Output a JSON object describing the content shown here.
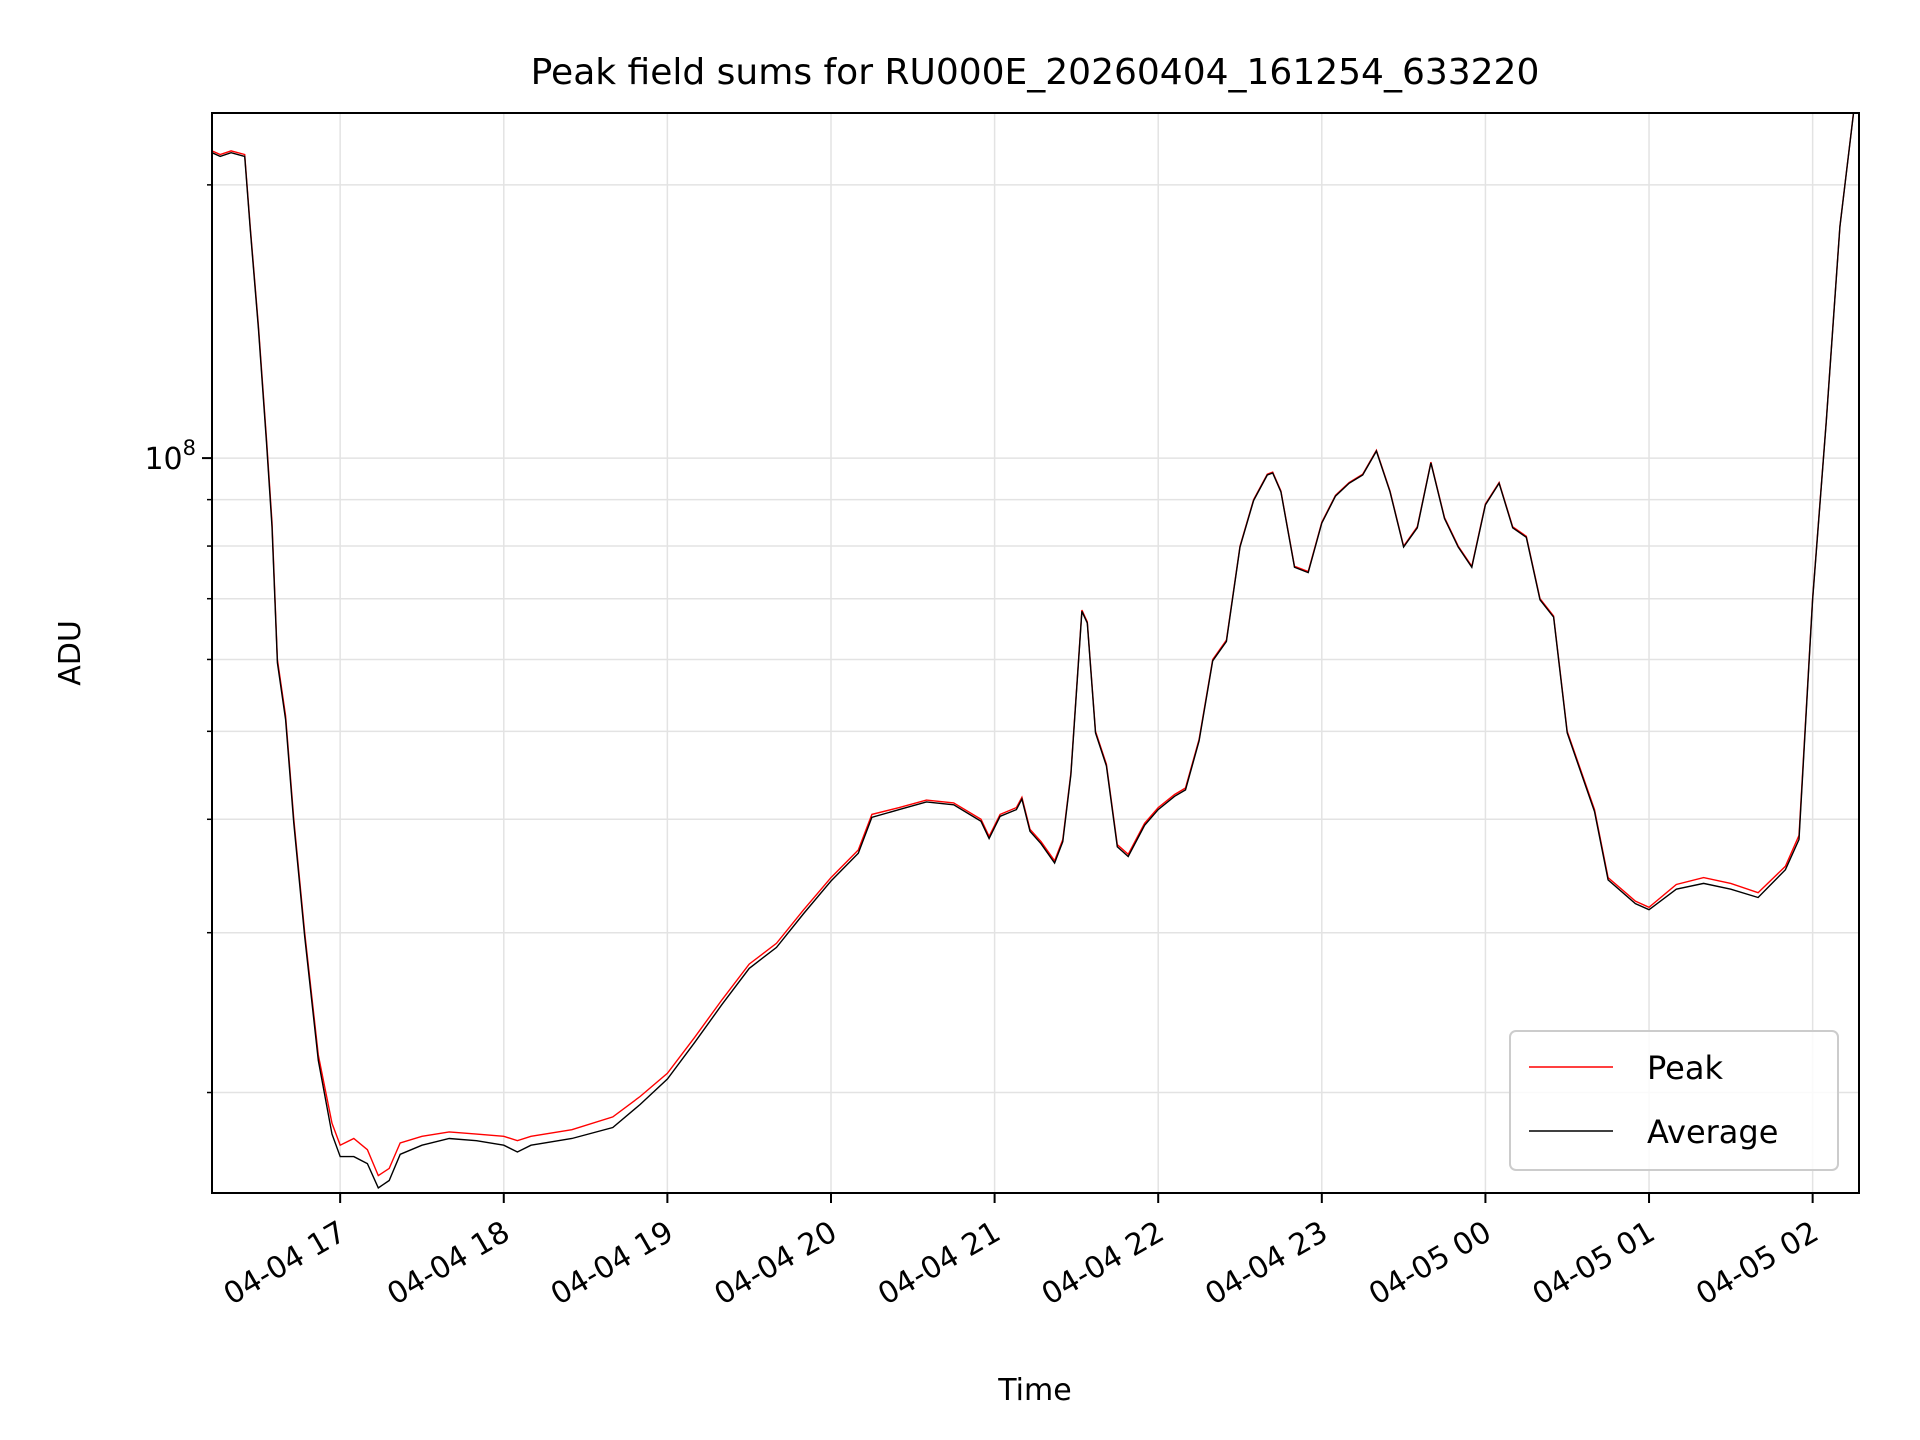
{
  "chart_data": {
    "type": "line",
    "title": "Peak field sums for RU000E_20260404_161254_633220",
    "xlabel": "Time",
    "ylabel": "ADU",
    "y_scale": "log",
    "ylim": [
      15500000,
      240000000
    ],
    "xlim": [
      "2026-04-04 16:13",
      "2026-04-05 02:17"
    ],
    "grid": true,
    "legend_position": "lower right",
    "x_ticks": [
      {
        "t": "2026-04-04 17:00",
        "label": "04-04 17"
      },
      {
        "t": "2026-04-04 18:00",
        "label": "04-04 18"
      },
      {
        "t": "2026-04-04 19:00",
        "label": "04-04 19"
      },
      {
        "t": "2026-04-04 20:00",
        "label": "04-04 20"
      },
      {
        "t": "2026-04-04 21:00",
        "label": "04-04 21"
      },
      {
        "t": "2026-04-04 22:00",
        "label": "04-04 22"
      },
      {
        "t": "2026-04-04 23:00",
        "label": "04-04 23"
      },
      {
        "t": "2026-04-05 00:00",
        "label": "04-05 00"
      },
      {
        "t": "2026-04-05 01:00",
        "label": "04-05 01"
      },
      {
        "t": "2026-04-05 02:00",
        "label": "04-05 02"
      }
    ],
    "y_major_ticks": [
      {
        "value": 100000000,
        "base": "10",
        "exp": "8"
      }
    ],
    "y_minor_ticks": [
      20000000,
      30000000,
      40000000,
      50000000,
      60000000,
      70000000,
      80000000,
      90000000,
      200000000
    ],
    "series": [
      {
        "name": "Peak",
        "color": "#ff0000",
        "points": [
          [
            "2026-04-04 16:13",
            218000000
          ],
          [
            "2026-04-04 16:16",
            216000000
          ],
          [
            "2026-04-04 16:20",
            218000000
          ],
          [
            "2026-04-04 16:25",
            216000000
          ],
          [
            "2026-04-04 16:27",
            180000000
          ],
          [
            "2026-04-04 16:30",
            140000000
          ],
          [
            "2026-04-04 16:33",
            105000000
          ],
          [
            "2026-04-04 16:35",
            85000000
          ],
          [
            "2026-04-04 16:37",
            60000000
          ],
          [
            "2026-04-04 16:40",
            52000000
          ],
          [
            "2026-04-04 16:43",
            40000000
          ],
          [
            "2026-04-04 16:47",
            30000000
          ],
          [
            "2026-04-04 16:52",
            22000000
          ],
          [
            "2026-04-04 16:57",
            18500000
          ],
          [
            "2026-04-04 17:00",
            17500000
          ],
          [
            "2026-04-04 17:05",
            17800000
          ],
          [
            "2026-04-04 17:10",
            17300000
          ],
          [
            "2026-04-04 17:14",
            16200000
          ],
          [
            "2026-04-04 17:18",
            16500000
          ],
          [
            "2026-04-04 17:22",
            17600000
          ],
          [
            "2026-04-04 17:30",
            17900000
          ],
          [
            "2026-04-04 17:40",
            18100000
          ],
          [
            "2026-04-04 17:50",
            18000000
          ],
          [
            "2026-04-04 18:00",
            17900000
          ],
          [
            "2026-04-04 18:05",
            17700000
          ],
          [
            "2026-04-04 18:10",
            17900000
          ],
          [
            "2026-04-04 18:25",
            18200000
          ],
          [
            "2026-04-04 18:40",
            18800000
          ],
          [
            "2026-04-04 18:50",
            19800000
          ],
          [
            "2026-04-04 19:00",
            21000000
          ],
          [
            "2026-04-04 19:10",
            23000000
          ],
          [
            "2026-04-04 19:20",
            25300000
          ],
          [
            "2026-04-04 19:30",
            27700000
          ],
          [
            "2026-04-04 19:40",
            29200000
          ],
          [
            "2026-04-04 19:50",
            31800000
          ],
          [
            "2026-04-04 20:00",
            34500000
          ],
          [
            "2026-04-04 20:10",
            37000000
          ],
          [
            "2026-04-04 20:15",
            40500000
          ],
          [
            "2026-04-04 20:25",
            41200000
          ],
          [
            "2026-04-04 20:35",
            42000000
          ],
          [
            "2026-04-04 20:45",
            41700000
          ],
          [
            "2026-04-04 20:55",
            40000000
          ],
          [
            "2026-04-04 20:58",
            38300000
          ],
          [
            "2026-04-04 21:02",
            40500000
          ],
          [
            "2026-04-04 21:08",
            41200000
          ],
          [
            "2026-04-04 21:10",
            42300000
          ],
          [
            "2026-04-04 21:13",
            39000000
          ],
          [
            "2026-04-04 21:17",
            37800000
          ],
          [
            "2026-04-04 21:22",
            36000000
          ],
          [
            "2026-04-04 21:25",
            38000000
          ],
          [
            "2026-04-04 21:28",
            45000000
          ],
          [
            "2026-04-04 21:32",
            68000000
          ],
          [
            "2026-04-04 21:34",
            66000000
          ],
          [
            "2026-04-04 21:37",
            50000000
          ],
          [
            "2026-04-04 21:41",
            46000000
          ],
          [
            "2026-04-04 21:45",
            37500000
          ],
          [
            "2026-04-04 21:49",
            36600000
          ],
          [
            "2026-04-04 21:55",
            39600000
          ],
          [
            "2026-04-04 22:00",
            41200000
          ],
          [
            "2026-04-04 22:06",
            42600000
          ],
          [
            "2026-04-04 22:10",
            43300000
          ],
          [
            "2026-04-04 22:15",
            49000000
          ],
          [
            "2026-04-04 22:20",
            60000000
          ],
          [
            "2026-04-04 22:25",
            63000000
          ],
          [
            "2026-04-04 22:30",
            80000000
          ],
          [
            "2026-04-04 22:35",
            90000000
          ],
          [
            "2026-04-04 22:40",
            96000000
          ],
          [
            "2026-04-04 22:42",
            96500000
          ],
          [
            "2026-04-04 22:45",
            92000000
          ],
          [
            "2026-04-04 22:50",
            76000000
          ],
          [
            "2026-04-04 22:55",
            75000000
          ],
          [
            "2026-04-04 23:00",
            85000000
          ],
          [
            "2026-04-04 23:05",
            91000000
          ],
          [
            "2026-04-04 23:10",
            94000000
          ],
          [
            "2026-04-04 23:15",
            96000000
          ],
          [
            "2026-04-04 23:20",
            102000000
          ],
          [
            "2026-04-04 23:25",
            92000000
          ],
          [
            "2026-04-04 23:30",
            80000000
          ],
          [
            "2026-04-04 23:35",
            84000000
          ],
          [
            "2026-04-04 23:40",
            99000000
          ],
          [
            "2026-04-04 23:45",
            86000000
          ],
          [
            "2026-04-04 23:50",
            80000000
          ],
          [
            "2026-04-04 23:55",
            76000000
          ],
          [
            "2026-04-05 00:00",
            89000000
          ],
          [
            "2026-04-05 00:05",
            94000000
          ],
          [
            "2026-04-05 00:10",
            84000000
          ],
          [
            "2026-04-05 00:15",
            82000000
          ],
          [
            "2026-04-05 00:20",
            70000000
          ],
          [
            "2026-04-05 00:25",
            67000000
          ],
          [
            "2026-04-05 00:30",
            50000000
          ],
          [
            "2026-04-05 00:40",
            41000000
          ],
          [
            "2026-04-05 00:45",
            34500000
          ],
          [
            "2026-04-05 00:55",
            32500000
          ],
          [
            "2026-04-05 01:00",
            32000000
          ],
          [
            "2026-04-05 01:10",
            33900000
          ],
          [
            "2026-04-05 01:20",
            34500000
          ],
          [
            "2026-04-05 01:30",
            34000000
          ],
          [
            "2026-04-05 01:40",
            33200000
          ],
          [
            "2026-04-05 01:50",
            35500000
          ],
          [
            "2026-04-05 01:55",
            38400000
          ],
          [
            "2026-04-05 02:00",
            70000000
          ],
          [
            "2026-04-05 02:05",
            110000000
          ],
          [
            "2026-04-05 02:10",
            180000000
          ],
          [
            "2026-04-05 02:15",
            240000000
          ]
        ]
      },
      {
        "name": "Average",
        "color": "#000000",
        "points": [
          [
            "2026-04-04 16:13",
            217000000
          ],
          [
            "2026-04-04 16:16",
            215000000
          ],
          [
            "2026-04-04 16:20",
            217000000
          ],
          [
            "2026-04-04 16:25",
            215000000
          ],
          [
            "2026-04-04 16:27",
            179000000
          ],
          [
            "2026-04-04 16:30",
            139000000
          ],
          [
            "2026-04-04 16:33",
            104000000
          ],
          [
            "2026-04-04 16:35",
            84000000
          ],
          [
            "2026-04-04 16:37",
            59500000
          ],
          [
            "2026-04-04 16:40",
            51500000
          ],
          [
            "2026-04-04 16:43",
            39600000
          ],
          [
            "2026-04-04 16:47",
            29700000
          ],
          [
            "2026-04-04 16:52",
            21700000
          ],
          [
            "2026-04-04 16:57",
            18000000
          ],
          [
            "2026-04-04 17:00",
            17000000
          ],
          [
            "2026-04-04 17:05",
            17000000
          ],
          [
            "2026-04-04 17:10",
            16700000
          ],
          [
            "2026-04-04 17:14",
            15700000
          ],
          [
            "2026-04-04 17:18",
            16000000
          ],
          [
            "2026-04-04 17:22",
            17100000
          ],
          [
            "2026-04-04 17:30",
            17500000
          ],
          [
            "2026-04-04 17:40",
            17800000
          ],
          [
            "2026-04-04 17:50",
            17700000
          ],
          [
            "2026-04-04 18:00",
            17500000
          ],
          [
            "2026-04-04 18:05",
            17200000
          ],
          [
            "2026-04-04 18:10",
            17500000
          ],
          [
            "2026-04-04 18:25",
            17800000
          ],
          [
            "2026-04-04 18:40",
            18300000
          ],
          [
            "2026-04-04 18:50",
            19400000
          ],
          [
            "2026-04-04 19:00",
            20700000
          ],
          [
            "2026-04-04 19:10",
            22700000
          ],
          [
            "2026-04-04 19:20",
            25000000
          ],
          [
            "2026-04-04 19:30",
            27400000
          ],
          [
            "2026-04-04 19:40",
            28900000
          ],
          [
            "2026-04-04 19:50",
            31500000
          ],
          [
            "2026-04-04 20:00",
            34200000
          ],
          [
            "2026-04-04 20:10",
            36700000
          ],
          [
            "2026-04-04 20:15",
            40200000
          ],
          [
            "2026-04-04 20:25",
            41000000
          ],
          [
            "2026-04-04 20:35",
            41800000
          ],
          [
            "2026-04-04 20:45",
            41500000
          ],
          [
            "2026-04-04 20:55",
            39800000
          ],
          [
            "2026-04-04 20:58",
            38100000
          ],
          [
            "2026-04-04 21:02",
            40300000
          ],
          [
            "2026-04-04 21:08",
            41000000
          ],
          [
            "2026-04-04 21:10",
            42100000
          ],
          [
            "2026-04-04 21:13",
            38800000
          ],
          [
            "2026-04-04 21:17",
            37600000
          ],
          [
            "2026-04-04 21:22",
            35800000
          ],
          [
            "2026-04-04 21:25",
            37800000
          ],
          [
            "2026-04-04 21:28",
            44800000
          ],
          [
            "2026-04-04 21:32",
            67800000
          ],
          [
            "2026-04-04 21:34",
            65800000
          ],
          [
            "2026-04-04 21:37",
            49800000
          ],
          [
            "2026-04-04 21:41",
            45800000
          ],
          [
            "2026-04-04 21:45",
            37300000
          ],
          [
            "2026-04-04 21:49",
            36400000
          ],
          [
            "2026-04-04 21:55",
            39400000
          ],
          [
            "2026-04-04 22:00",
            41000000
          ],
          [
            "2026-04-04 22:06",
            42400000
          ],
          [
            "2026-04-04 22:10",
            43100000
          ],
          [
            "2026-04-04 22:15",
            48800000
          ],
          [
            "2026-04-04 22:20",
            59800000
          ],
          [
            "2026-04-04 22:25",
            62800000
          ],
          [
            "2026-04-04 22:30",
            79800000
          ],
          [
            "2026-04-04 22:35",
            89800000
          ],
          [
            "2026-04-04 22:40",
            95800000
          ],
          [
            "2026-04-04 22:42",
            96300000
          ],
          [
            "2026-04-04 22:45",
            91800000
          ],
          [
            "2026-04-04 22:50",
            75800000
          ],
          [
            "2026-04-04 22:55",
            74800000
          ],
          [
            "2026-04-04 23:00",
            84800000
          ],
          [
            "2026-04-04 23:05",
            90800000
          ],
          [
            "2026-04-04 23:10",
            93800000
          ],
          [
            "2026-04-04 23:15",
            95800000
          ],
          [
            "2026-04-04 23:20",
            101800000
          ],
          [
            "2026-04-04 23:25",
            91800000
          ],
          [
            "2026-04-04 23:30",
            79800000
          ],
          [
            "2026-04-04 23:35",
            83800000
          ],
          [
            "2026-04-04 23:40",
            98800000
          ],
          [
            "2026-04-04 23:45",
            85800000
          ],
          [
            "2026-04-04 23:50",
            79800000
          ],
          [
            "2026-04-04 23:55",
            75800000
          ],
          [
            "2026-04-05 00:00",
            88800000
          ],
          [
            "2026-04-05 00:05",
            93800000
          ],
          [
            "2026-04-05 00:10",
            83800000
          ],
          [
            "2026-04-05 00:15",
            81800000
          ],
          [
            "2026-04-05 00:20",
            69800000
          ],
          [
            "2026-04-05 00:25",
            66800000
          ],
          [
            "2026-04-05 00:30",
            49800000
          ],
          [
            "2026-04-05 00:40",
            40800000
          ],
          [
            "2026-04-05 00:45",
            34300000
          ],
          [
            "2026-04-05 00:55",
            32300000
          ],
          [
            "2026-04-05 01:00",
            31800000
          ],
          [
            "2026-04-05 01:10",
            33500000
          ],
          [
            "2026-04-05 01:20",
            34000000
          ],
          [
            "2026-04-05 01:30",
            33500000
          ],
          [
            "2026-04-05 01:40",
            32800000
          ],
          [
            "2026-04-05 01:50",
            35200000
          ],
          [
            "2026-04-05 01:55",
            38000000
          ],
          [
            "2026-04-05 02:00",
            69800000
          ],
          [
            "2026-04-05 02:05",
            109800000
          ],
          [
            "2026-04-05 02:10",
            179800000
          ],
          [
            "2026-04-05 02:15",
            239800000
          ]
        ]
      }
    ]
  }
}
